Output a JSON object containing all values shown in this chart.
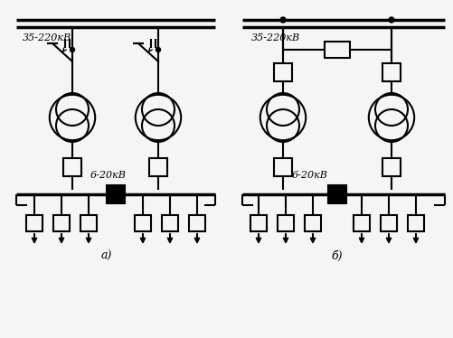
{
  "bg_color": "#f5f5f5",
  "line_color": "#000000",
  "label_a": "a)",
  "label_b": "б)",
  "text_35_220_a": "35-220кВ",
  "text_35_220_b": "35-220кВ",
  "text_6_20_a": "6-20кВ",
  "text_6_20_b": "6-20кВ",
  "fig_width": 5.02,
  "fig_height": 3.74,
  "dpi": 100
}
